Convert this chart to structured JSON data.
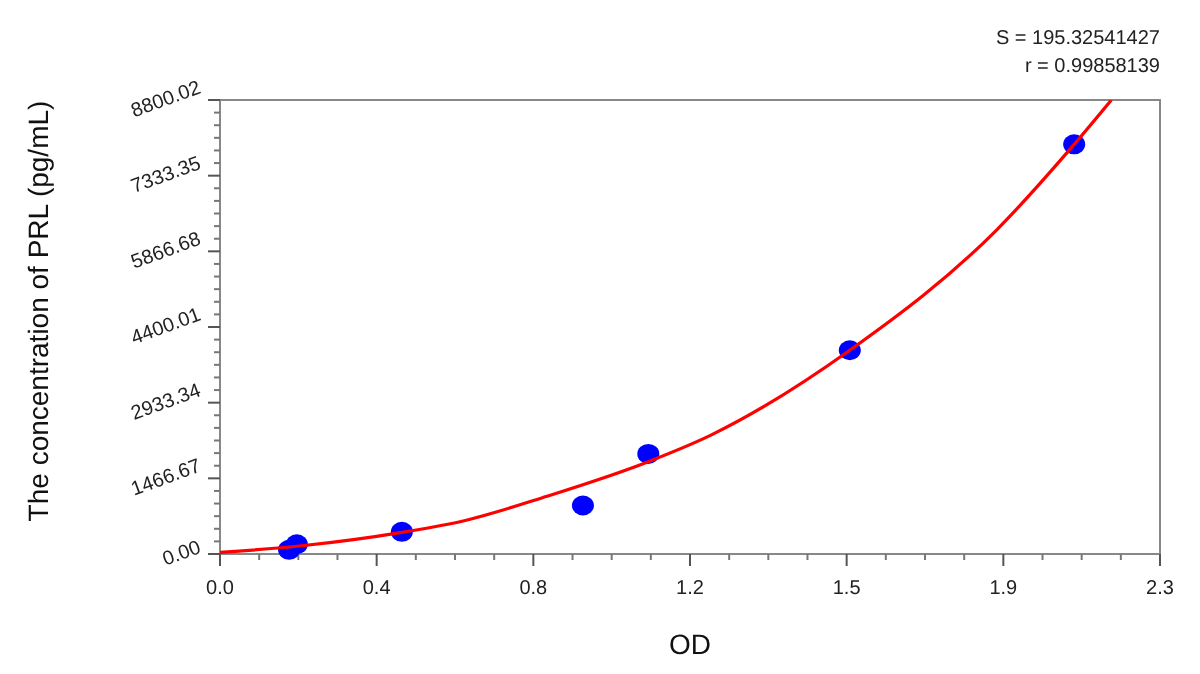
{
  "chart_data": {
    "type": "scatter",
    "xlabel": "OD",
    "ylabel": "The concentration of PRL (pg/mL)",
    "annotations": [
      "S = 195.32541427",
      "r = 0.99858139"
    ],
    "xlim": [
      0,
      2.3
    ],
    "ylim": [
      0,
      8800.02
    ],
    "xticks": [
      {
        "value": 0,
        "label": "0.0"
      },
      {
        "value": 0.3833,
        "label": "0.4"
      },
      {
        "value": 0.7667,
        "label": "0.8"
      },
      {
        "value": 1.15,
        "label": "1.2"
      },
      {
        "value": 1.5333,
        "label": "1.5"
      },
      {
        "value": 1.9167,
        "label": "1.9"
      },
      2.3
    ],
    "yticks": [
      {
        "value": 0,
        "label": "0.00"
      },
      1466.67,
      2933.34,
      4400.01,
      5866.68,
      7333.35,
      8800.02
    ],
    "grid": false,
    "series": [
      {
        "type": "scatter",
        "marker": "circle",
        "color": "#0000ff",
        "x": [
          0.169,
          0.188,
          0.445,
          0.888,
          1.048,
          1.541,
          2.09
        ],
        "values": [
          80,
          190,
          430,
          940,
          1940,
          3950,
          7940
        ]
      },
      {
        "type": "line",
        "color": "#ff0000",
        "x": [
          0,
          0.2,
          0.445,
          0.6,
          0.8,
          1.048,
          1.2,
          1.541,
          1.9,
          2.09,
          2.181
        ],
        "values": [
          30,
          160,
          420,
          650,
          1120,
          1790,
          2300,
          3950,
          6280,
          7940,
          8800
        ]
      }
    ]
  }
}
